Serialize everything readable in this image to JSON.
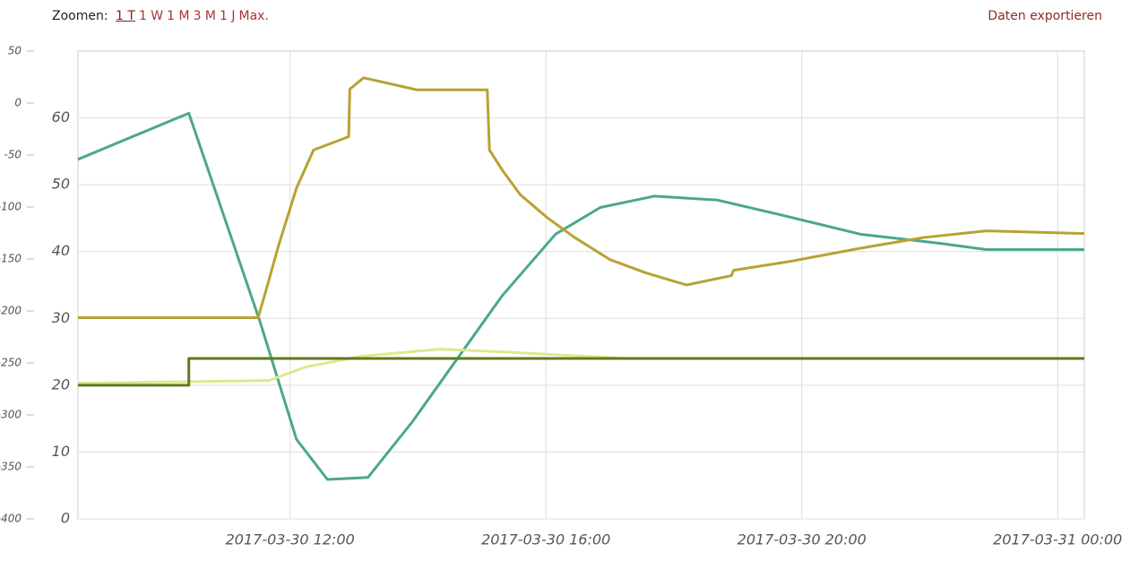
{
  "toolbar": {
    "zoom_label": "Zoomen:",
    "zoom_options": [
      "1 T",
      "1 W",
      "1 M",
      "3 M",
      "1 J",
      "Max."
    ],
    "export": "Daten exportieren"
  },
  "chart_data": {
    "type": "line",
    "xlim": [
      "2017-03-30 08:41",
      "2017-03-31 00:25"
    ],
    "xticks": [
      "2017-03-30 12:00",
      "2017-03-30 16:00",
      "2017-03-30 20:00",
      "2017-03-31 00:00"
    ],
    "ylim": [
      -400,
      50
    ],
    "yticks": [
      50,
      0,
      -50,
      -100,
      -150,
      -200,
      -250,
      -300,
      -350,
      -400
    ],
    "y2lim": [
      0,
      70
    ],
    "y2ticks": [
      0,
      10,
      20,
      30,
      40,
      50,
      60
    ],
    "grid": true,
    "series": [
      {
        "color": "#4aa88a",
        "axis": "y2",
        "x": [
          "2017-03-30 08:41",
          "2017-03-30 10:25",
          "2017-03-30 11:32",
          "2017-03-30 12:06",
          "2017-03-30 12:35",
          "2017-03-30 13:13",
          "2017-03-30 13:55",
          "2017-03-30 14:37",
          "2017-03-30 15:19",
          "2017-03-30 16:09",
          "2017-03-30 16:51",
          "2017-03-30 17:42",
          "2017-03-30 18:41",
          "2017-03-30 19:40",
          "2017-03-30 20:55",
          "2017-03-30 22:11",
          "2017-03-30 22:53",
          "2017-03-31 00:25"
        ],
        "values": [
          53.8,
          60.7,
          29.4,
          11.9,
          5.9,
          6.2,
          14.6,
          24.0,
          33.4,
          42.6,
          46.6,
          48.3,
          47.7,
          45.5,
          42.6,
          41.2,
          40.3,
          40.3
        ]
      },
      {
        "color": "#b9a233",
        "axis": "y2",
        "x": [
          "2017-03-30 08:41",
          "2017-03-30 11:30",
          "2017-03-30 11:36",
          "2017-03-30 11:49",
          "2017-03-30 12:06",
          "2017-03-30 12:22",
          "2017-03-30 12:55",
          "2017-03-30 12:56",
          "2017-03-30 13:09",
          "2017-03-30 13:59",
          "2017-03-30 15:05",
          "2017-03-30 15:07",
          "2017-03-30 15:19",
          "2017-03-30 15:36",
          "2017-03-30 16:01",
          "2017-03-30 16:27",
          "2017-03-30 17:00",
          "2017-03-30 17:34",
          "2017-03-30 18:12",
          "2017-03-30 18:54",
          "2017-03-30 18:56",
          "2017-03-30 19:48",
          "2017-03-30 20:55",
          "2017-03-30 21:54",
          "2017-03-30 22:53",
          "2017-03-31 00:25"
        ],
        "values": [
          30.1,
          30.1,
          33.4,
          40.8,
          49.5,
          55.2,
          57.2,
          64.3,
          66.0,
          64.2,
          64.2,
          55.2,
          52.2,
          48.5,
          45.1,
          42.1,
          38.8,
          36.8,
          35.0,
          36.4,
          37.2,
          38.5,
          40.5,
          42.1,
          43.1,
          42.7
        ]
      },
      {
        "color": "#dde98f",
        "axis": "y2",
        "x": [
          "2017-03-30 08:41",
          "2017-03-30 11:40",
          "2017-03-30 12:14",
          "2017-03-30 13:05",
          "2017-03-30 14:20",
          "2017-03-30 15:19",
          "2017-03-30 17:17",
          "2017-03-31 00:25"
        ],
        "values": [
          20.3,
          20.7,
          22.7,
          24.3,
          25.4,
          25.0,
          24.0,
          24.0
        ]
      },
      {
        "color": "#5f7a1e",
        "axis": "y2",
        "x": [
          "2017-03-30 08:41",
          "2017-03-30 10:25",
          "2017-03-30 10:25",
          "2017-03-31 00:25"
        ],
        "values": [
          20.0,
          20.0,
          24.0,
          24.0
        ]
      }
    ]
  }
}
